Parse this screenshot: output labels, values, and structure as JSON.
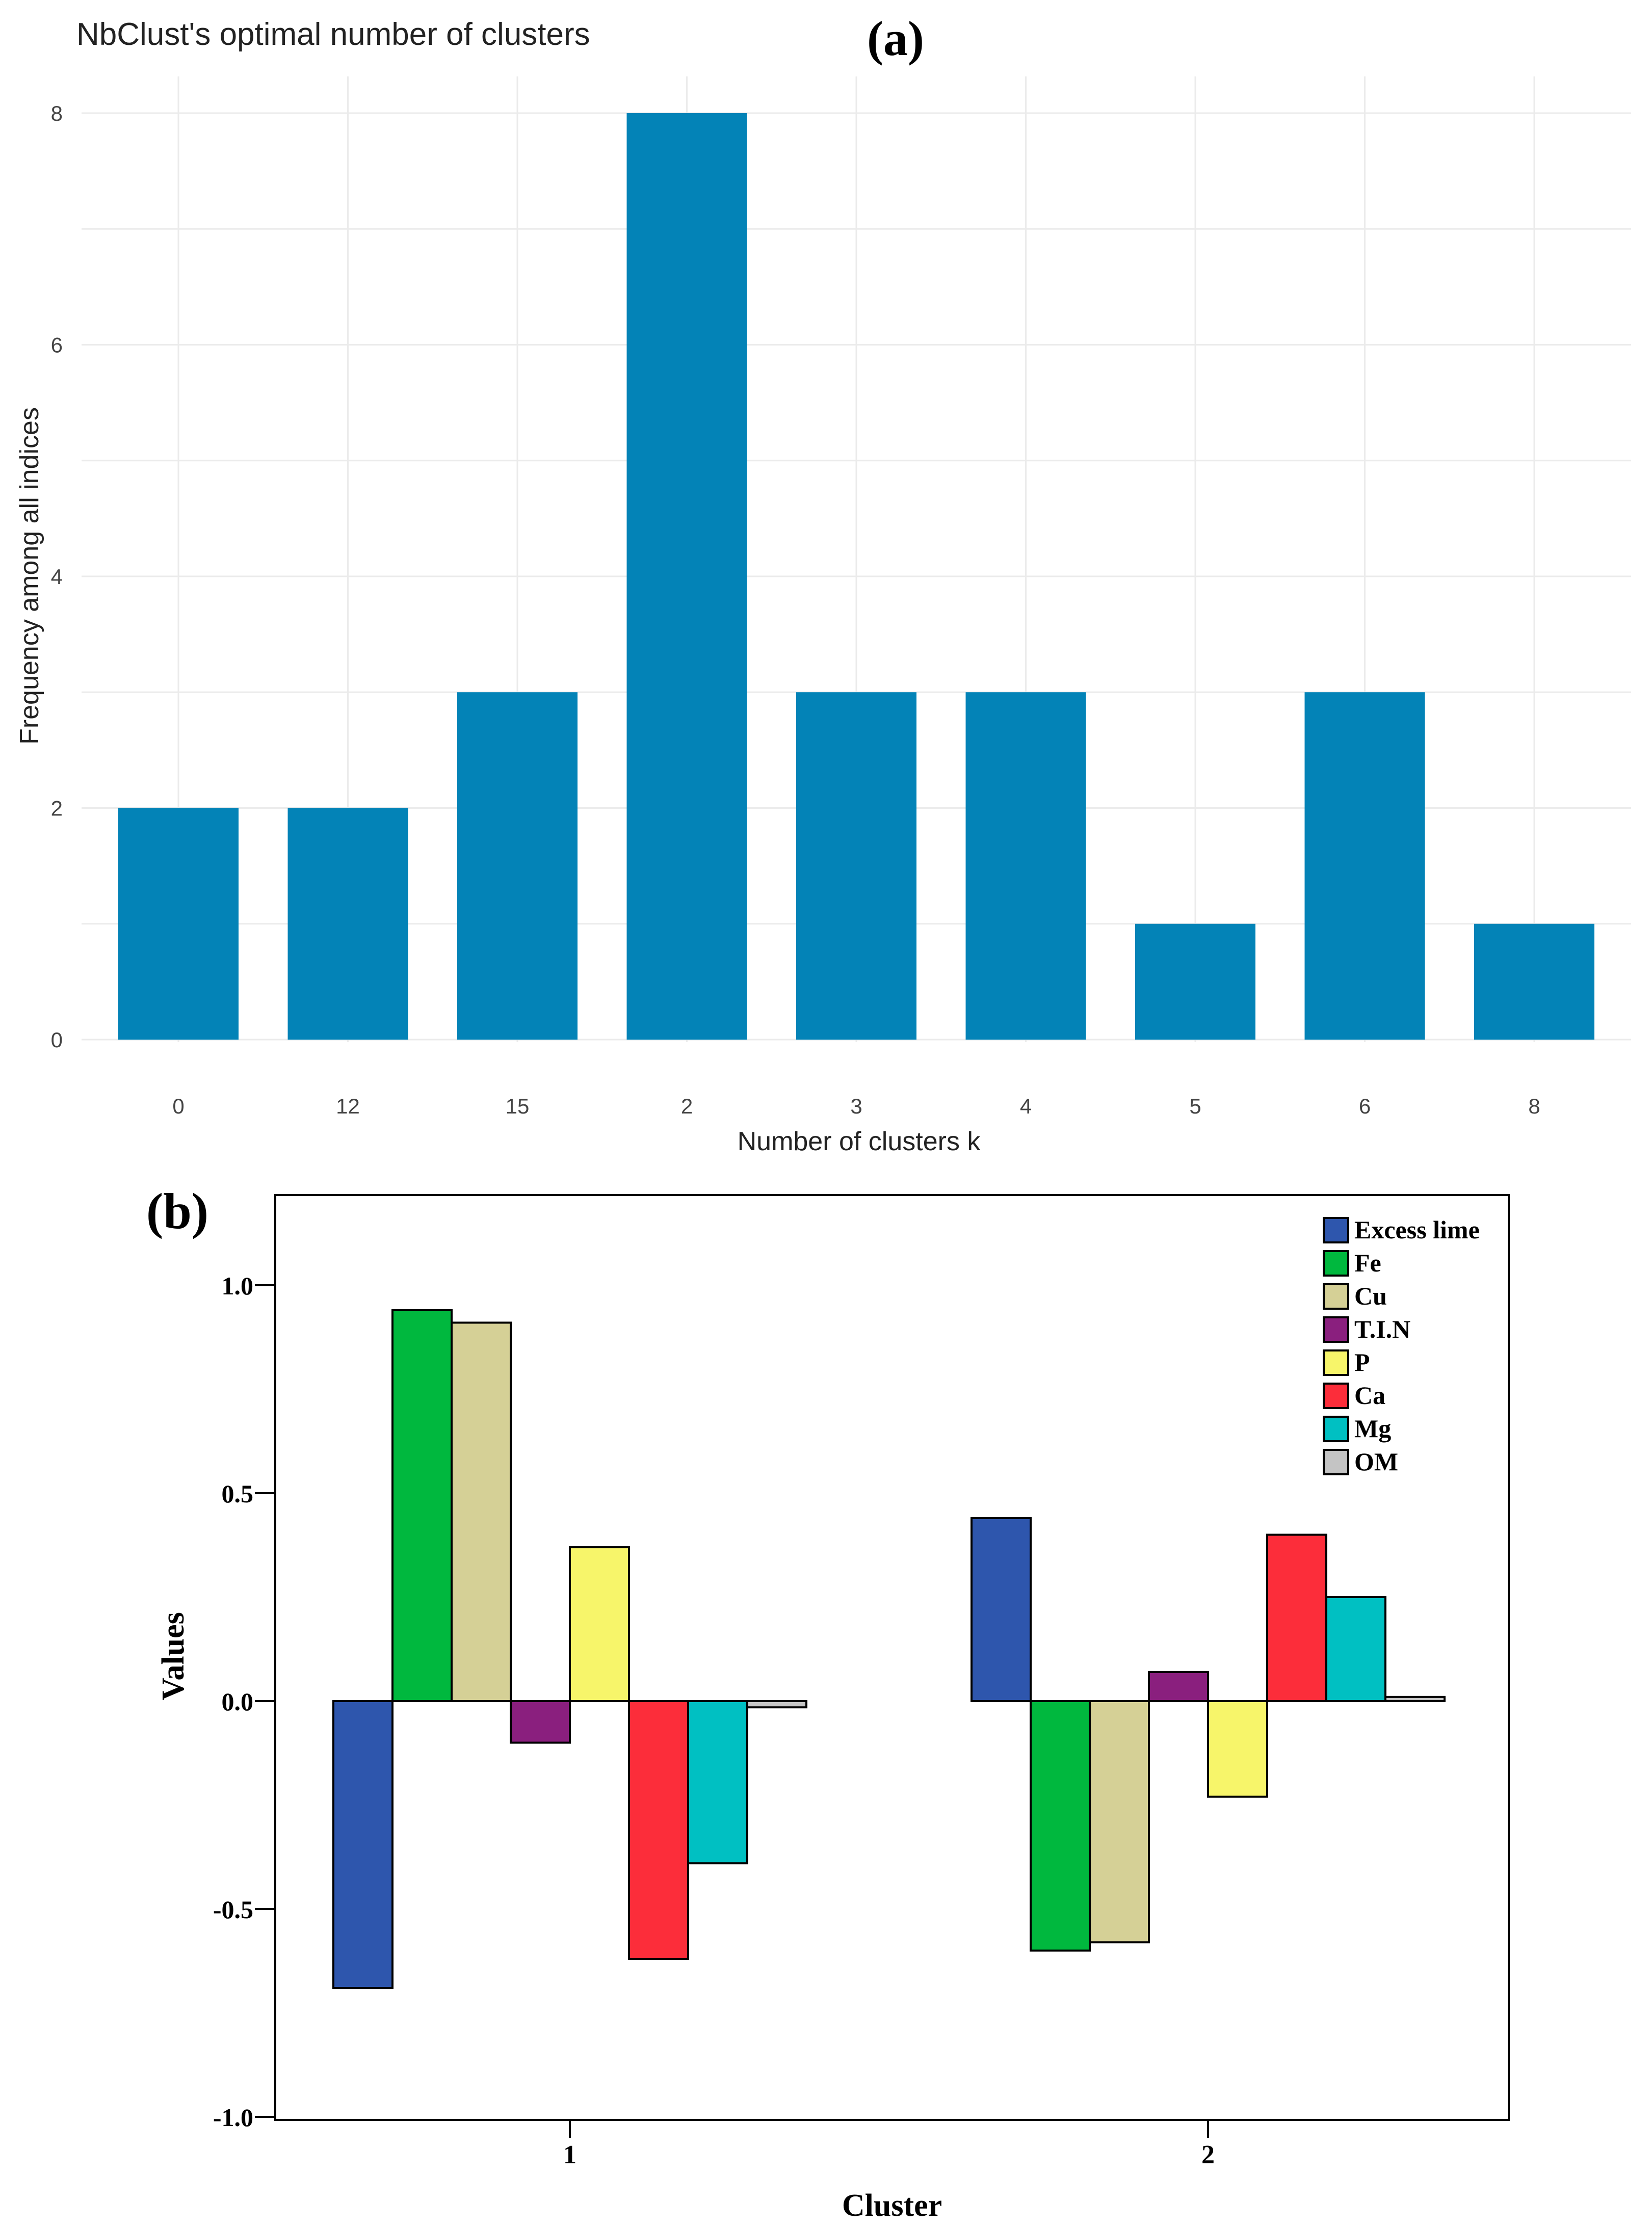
{
  "chart_data": [
    {
      "panel": "(a)",
      "type": "bar",
      "title": "NbClust's optimal number of clusters",
      "xlabel": "Number of clusters k",
      "ylabel": "Frequency among all indices",
      "categories": [
        "0",
        "12",
        "15",
        "2",
        "3",
        "4",
        "5",
        "6",
        "8"
      ],
      "values": [
        2,
        2,
        3,
        8,
        3,
        3,
        1,
        3,
        1
      ],
      "ylim": [
        0,
        8
      ],
      "yticks": [
        "0",
        "2",
        "4",
        "6",
        "8"
      ],
      "grid": true,
      "color": "#0383b7"
    },
    {
      "panel": "(b)",
      "type": "bar",
      "xlabel": "Cluster",
      "ylabel": "Values",
      "categories": [
        "1",
        "2"
      ],
      "ylim": [
        -1.0,
        1.2
      ],
      "yticks": [
        "-1.0",
        "-0.5",
        "0.0",
        "0.5",
        "1.0"
      ],
      "legend_position": "top-right",
      "series": [
        {
          "name": "Excess lime",
          "color": "#2e56ad",
          "values": [
            -0.69,
            0.44
          ]
        },
        {
          "name": "Fe",
          "color": "#00b83e",
          "values": [
            0.94,
            -0.6
          ]
        },
        {
          "name": "Cu",
          "color": "#d5d096",
          "values": [
            0.91,
            -0.58
          ]
        },
        {
          "name": "T.I.N",
          "color": "#8a1f7e",
          "values": [
            -0.1,
            0.07
          ]
        },
        {
          "name": "P",
          "color": "#f7f56a",
          "values": [
            0.37,
            -0.23
          ]
        },
        {
          "name": "Ca",
          "color": "#fc2d3a",
          "values": [
            -0.62,
            0.4
          ]
        },
        {
          "name": "Mg",
          "color": "#00c0c2",
          "values": [
            -0.39,
            0.25
          ]
        },
        {
          "name": "OM",
          "color": "#c4c4c4",
          "values": [
            -0.015,
            0.01
          ]
        }
      ]
    }
  ]
}
